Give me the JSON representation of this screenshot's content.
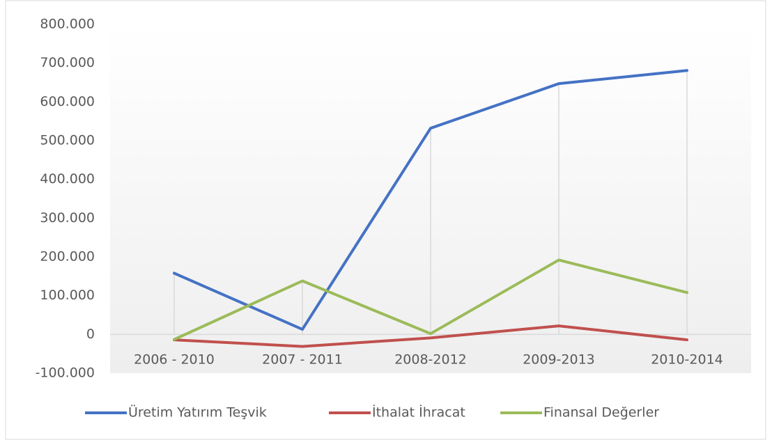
{
  "chart_data": {
    "type": "line",
    "categories": [
      "2006 - 2010",
      "2007 - 2011",
      "2008-2012",
      "2009-2013",
      "2010-2014"
    ],
    "series": [
      {
        "name": "Üretim Yatırım Teşvik",
        "color": "#4472c4",
        "values": [
          158000,
          13000,
          532000,
          647000,
          681000
        ]
      },
      {
        "name": "İthalat İhracat",
        "color": "#c0504d",
        "values": [
          -14000,
          -31000,
          -9000,
          22000,
          -14000
        ]
      },
      {
        "name": "Finansal Değerler",
        "color": "#9bbb59",
        "values": [
          -13000,
          138000,
          2000,
          192000,
          108000
        ]
      }
    ],
    "ylim": [
      -100000,
      800000
    ],
    "yticks": [
      {
        "value": -100000,
        "label": "-100.000"
      },
      0,
      {
        "value": 100000,
        "label": "100.000"
      },
      {
        "value": 200000,
        "label": "200.000"
      },
      {
        "value": 300000,
        "label": "300.000"
      },
      {
        "value": 400000,
        "label": "400.000"
      },
      {
        "value": 500000,
        "label": "500.000"
      },
      {
        "value": 600000,
        "label": "600.000"
      },
      {
        "value": 700000,
        "label": "700.000"
      },
      {
        "value": 800000,
        "label": "800.000"
      }
    ],
    "grid": false,
    "drop_lines": true,
    "legend": "bottom"
  }
}
